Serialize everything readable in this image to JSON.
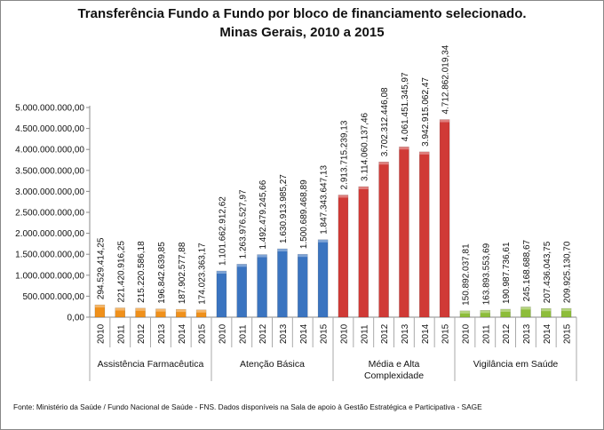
{
  "chart_data": {
    "type": "bar",
    "title": "Transferência Fundo a Fundo por bloco de financiamento selecionado.",
    "subtitle": "Minas Gerais, 2010 a 2015",
    "ylim": [
      0,
      5000000000
    ],
    "yticks": [
      "0,00",
      "500.000.000,00",
      "1.000.000.000,00",
      "1.500.000.000,00",
      "2.000.000.000,00",
      "2.500.000.000,00",
      "3.000.000.000,00",
      "3.500.000.000,00",
      "4.000.000.000,00",
      "4.500.000.000,00",
      "5.000.000.000,00"
    ],
    "grid": false,
    "groups": [
      {
        "name": "Assistência Farmacêutica",
        "color": "#f0901a",
        "years": [
          "2010",
          "2011",
          "2012",
          "2013",
          "2014",
          "2015"
        ],
        "values": [
          294529414.25,
          221420916.25,
          215220586.18,
          196842639.85,
          187902577.88,
          174023363.17
        ],
        "labels": [
          "294.529.414,25",
          "221.420.916,25",
          "215.220.586,18",
          "196.842.639,85",
          "187.902.577,88",
          "174.023.363,17"
        ]
      },
      {
        "name": "Atenção Básica",
        "color": "#3a74c0",
        "years": [
          "2010",
          "2011",
          "2012",
          "2013",
          "2014",
          "2015"
        ],
        "values": [
          1101662912.62,
          1263976527.97,
          1492479245.66,
          1630913985.27,
          1500689468.89,
          1847343647.13
        ],
        "labels": [
          "1.101.662.912,62",
          "1.263.976.527,97",
          "1.492.479.245,66",
          "1.630.913.985,27",
          "1.500.689.468,89",
          "1.847.343.647,13"
        ]
      },
      {
        "name": "Média e Alta Complexidade",
        "color": "#d03a36",
        "years": [
          "2010",
          "2011",
          "2012",
          "2013",
          "2014",
          "2015"
        ],
        "values": [
          2913715239.13,
          3114060137.46,
          3702312446.08,
          4061451345.97,
          3942915062.47,
          4712862019.34
        ],
        "labels": [
          "2.913.715.239,13",
          "3.114.060.137,46",
          "3.702.312.446,08",
          "4.061.451.345,97",
          "3.942.915.062,47",
          "4.712.862.019,34"
        ]
      },
      {
        "name": "Vigilância em Saúde",
        "color": "#8dbd3a",
        "years": [
          "2010",
          "2011",
          "2012",
          "2013",
          "2014",
          "2015"
        ],
        "values": [
          150892037.81,
          163893553.69,
          190987736.61,
          245168688.67,
          207436043.75,
          209925130.7
        ],
        "labels": [
          "150.892.037,81",
          "163.893.553,69",
          "190.987.736,61",
          "245.168.688,67",
          "207.436.043,75",
          "209.925.130,70"
        ]
      }
    ]
  },
  "footer": "Fonte: Ministério da Saúde / Fundo Nacional de Saúde - FNS. Dados disponíveis na Sala de apoio à Gestão Estratégica e Participativa - SAGE"
}
